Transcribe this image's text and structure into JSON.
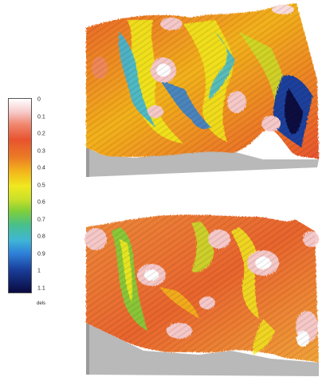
{
  "legend": {
    "ticks": [
      "0",
      "0.1",
      "0.2",
      "0.3",
      "0.4",
      "0.5",
      "0.6",
      "0.7",
      "0.8",
      "0.9",
      "1",
      "1.1"
    ],
    "unit": "dels"
  },
  "colors": {
    "scale": [
      "#ffffff",
      "#f6c8c8",
      "#f08870",
      "#e8532f",
      "#ea7a25",
      "#f3b21c",
      "#f0e81e",
      "#c8e02a",
      "#7fcf3a",
      "#48c08a",
      "#3eb6d6",
      "#2e7fd8",
      "#1a3f9c",
      "#0a0a40"
    ],
    "base": "#b9b9b9",
    "base_dark": "#9a9a9a"
  }
}
